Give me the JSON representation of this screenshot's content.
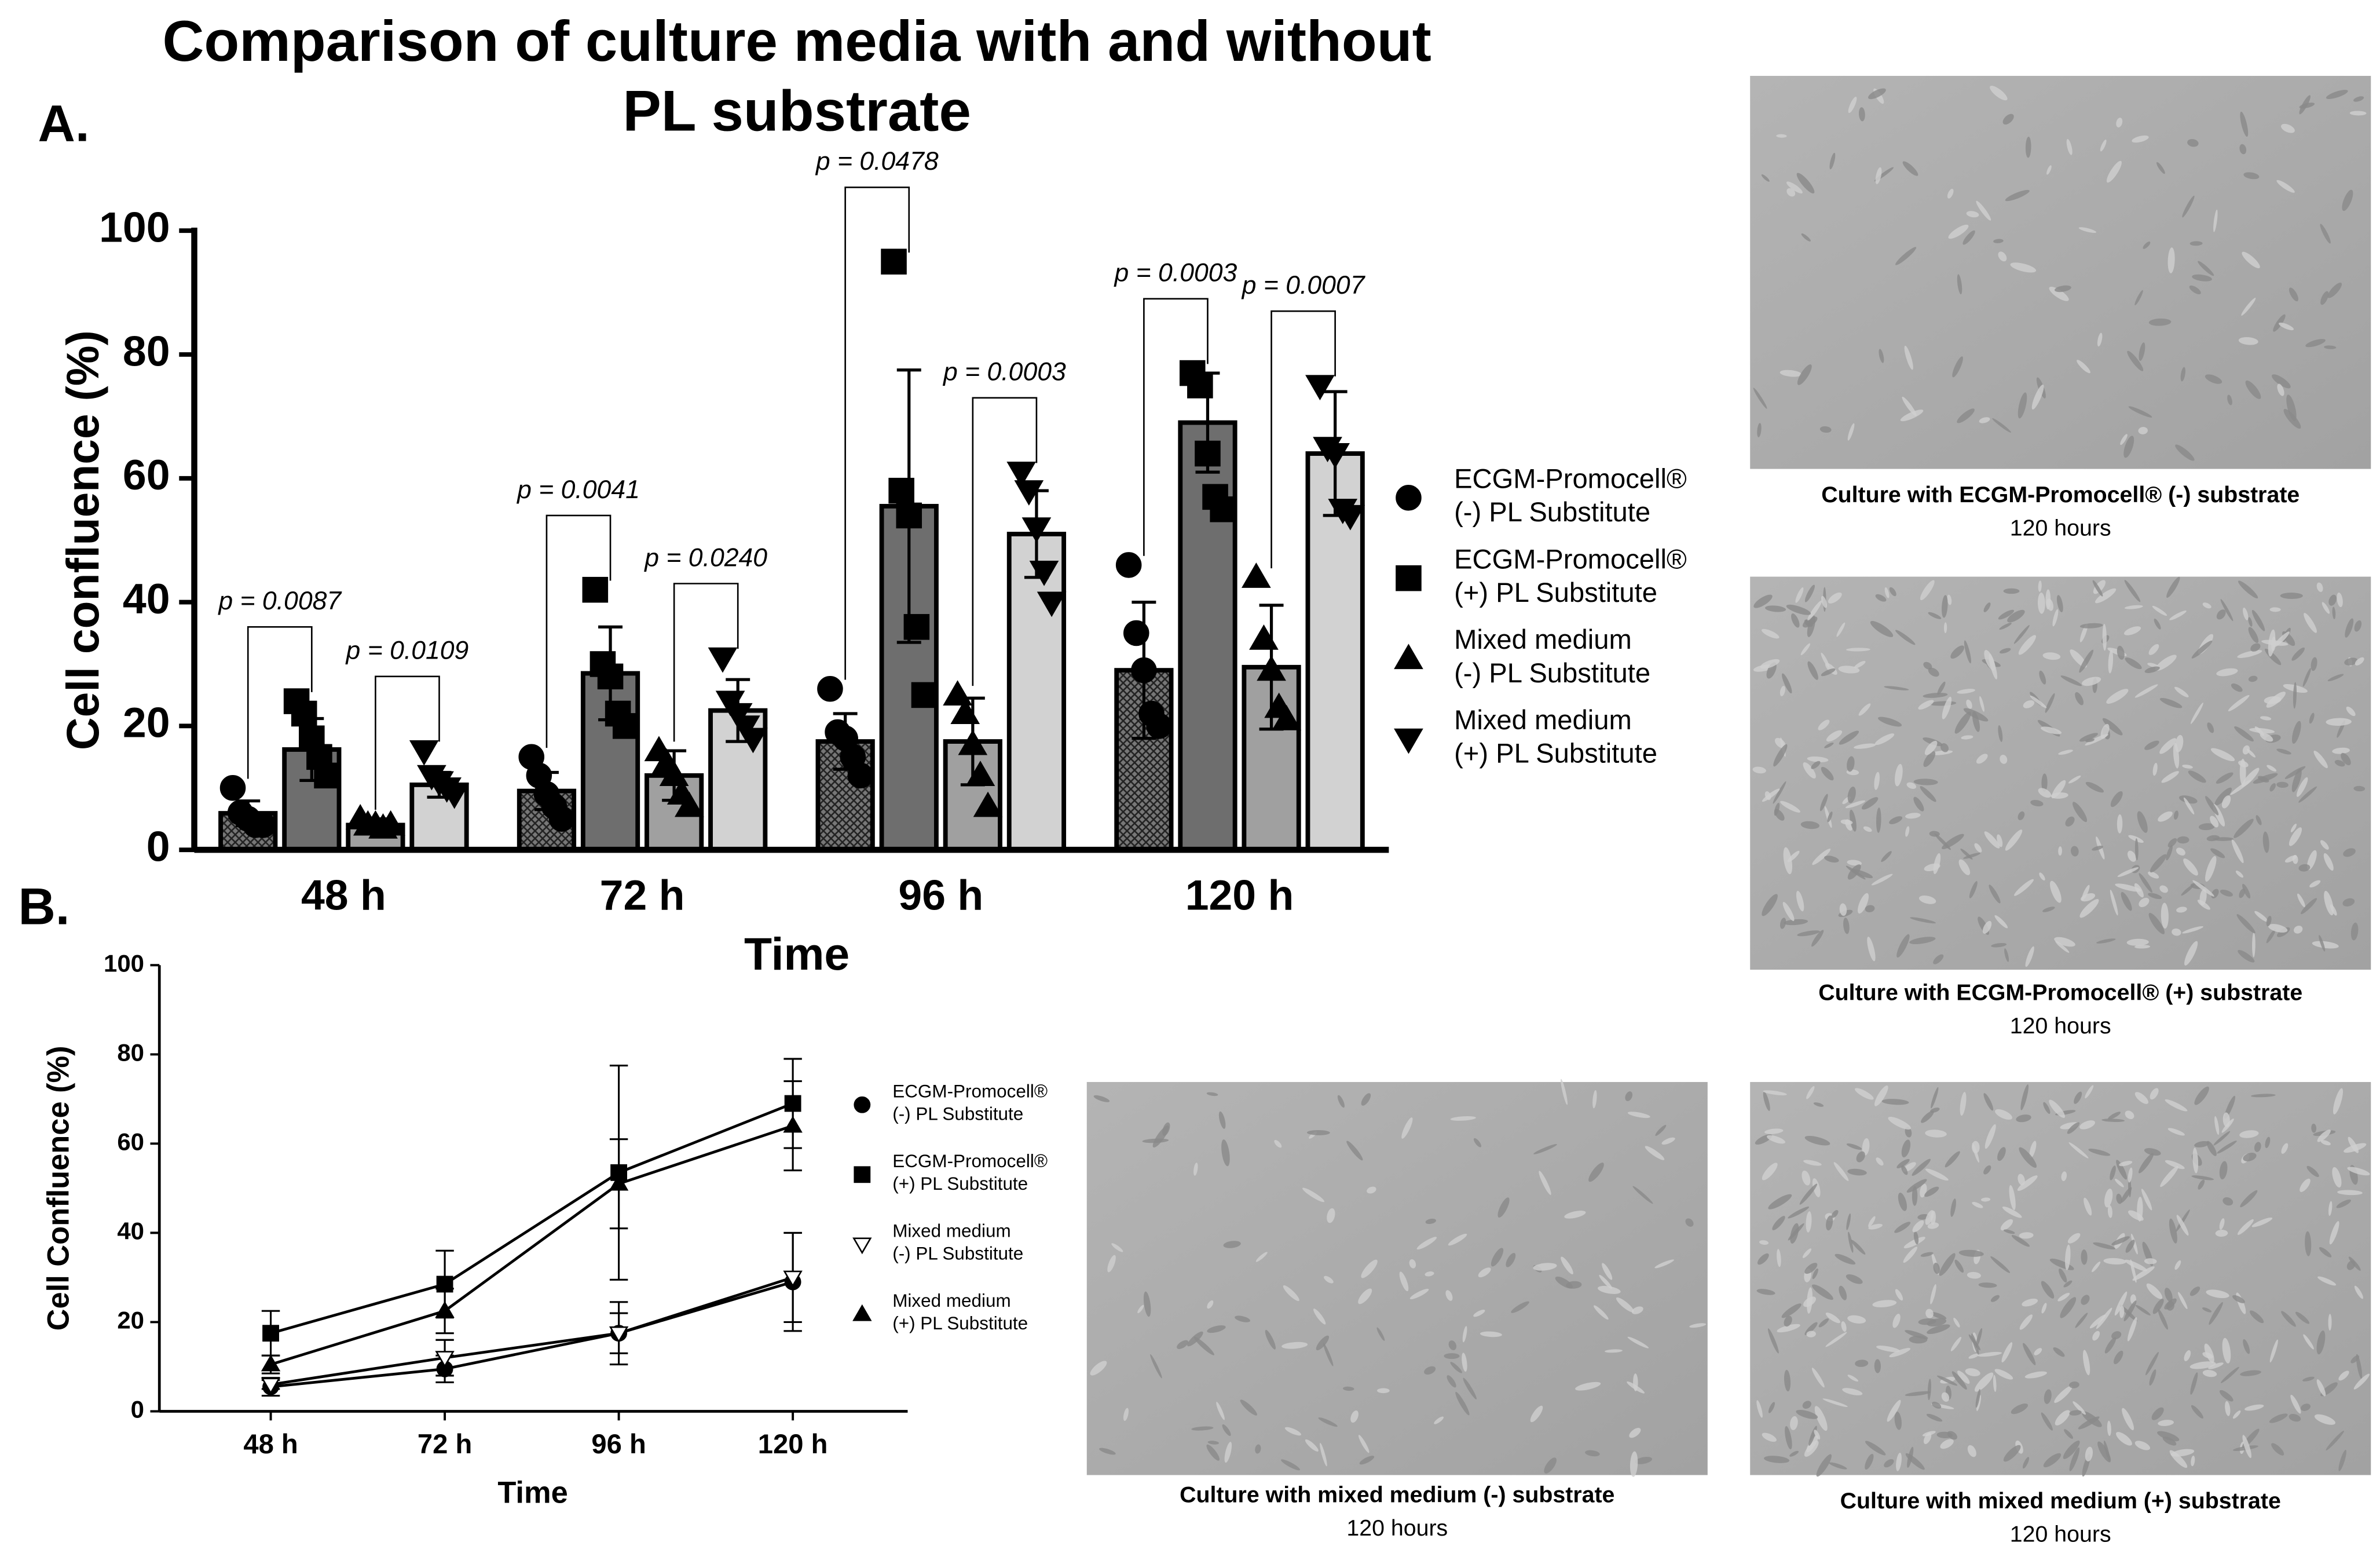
{
  "title": [
    "Comparison of culture media with and without",
    "PL substrate"
  ],
  "chart_data": [
    {
      "type": "bar",
      "panel_label": "A.",
      "x_label": "Time",
      "y_label": "Cell confluence (%)",
      "categories": [
        "48 h",
        "72 h",
        "96 h",
        "120 h"
      ],
      "ylim": [
        0,
        100
      ],
      "yticks": [
        0,
        20,
        40,
        60,
        80,
        100
      ],
      "series": [
        {
          "name": "ECGM-Promocell® (-) PL Substitute",
          "color": "#555555",
          "hatch": true,
          "marker": "circle",
          "values": [
            5.9,
            9.5,
            17.5,
            29
          ],
          "errors": [
            2,
            3,
            4.5,
            11
          ],
          "points": [
            [
              10,
              6,
              5,
              4,
              4
            ],
            [
              15,
              12,
              9,
              7,
              5
            ],
            [
              26,
              19,
              18,
              15,
              12
            ],
            [
              46,
              35,
              29,
              22,
              20
            ]
          ]
        },
        {
          "name": "ECGM-Promocell® (+) PL Substitute",
          "color": "#6e6e6e",
          "marker": "square",
          "values": [
            16.2,
            28.5,
            55.5,
            69
          ],
          "errors": [
            5,
            7.5,
            22,
            8
          ],
          "points": [
            [
              24,
              22,
              18,
              15,
              12
            ],
            [
              42,
              30,
              28,
              22,
              20
            ],
            [
              95,
              58,
              54,
              36,
              25
            ],
            [
              77,
              75,
              64,
              57,
              55
            ]
          ]
        },
        {
          "name": "Mixed medium (-) PL Substitute",
          "color": "#a0a0a0",
          "marker": "triangle-up",
          "values": [
            4,
            12,
            17.5,
            29.5
          ],
          "errors": [
            1,
            4,
            7,
            10
          ],
          "points": [
            [
              5,
              4,
              4,
              3.5,
              4
            ],
            [
              16,
              14,
              12,
              9,
              7
            ],
            [
              25,
              22,
              17,
              12,
              7
            ],
            [
              44,
              34,
              29,
              23,
              21
            ]
          ]
        },
        {
          "name": "Mixed medium (+) PL Substitute",
          "color": "#d2d2d2",
          "marker": "triangle-down",
          "values": [
            10.5,
            22.5,
            51,
            64
          ],
          "errors": [
            2,
            5,
            7,
            10
          ],
          "points": [
            [
              16,
              12,
              11,
              10,
              9
            ],
            [
              31,
              24,
              22,
              20,
              18
            ],
            [
              61,
              58,
              52,
              45,
              40
            ],
            [
              75,
              65,
              64,
              55,
              54
            ]
          ]
        }
      ],
      "annotations": [
        {
          "label": "p = 0.0087",
          "category": 0,
          "from": 0,
          "to": 1
        },
        {
          "label": "p = 0.0109",
          "category": 0,
          "from": 2,
          "to": 3
        },
        {
          "label": "p = 0.0041",
          "category": 1,
          "from": 0,
          "to": 1
        },
        {
          "label": "p = 0.0240",
          "category": 1,
          "from": 2,
          "to": 3
        },
        {
          "label": "p = 0.0478",
          "category": 2,
          "from": 0,
          "to": 1
        },
        {
          "label": "p = 0.0003",
          "category": 2,
          "from": 2,
          "to": 3
        },
        {
          "label": "p = 0.0003",
          "category": 3,
          "from": 0,
          "to": 1
        },
        {
          "label": "p = 0.0007",
          "category": 3,
          "from": 2,
          "to": 3
        }
      ]
    },
    {
      "type": "line",
      "panel_label": "B.",
      "x_label": "Time",
      "y_label": "Cell Confluence (%)",
      "categories": [
        "48 h",
        "72 h",
        "96 h",
        "120 h"
      ],
      "ylim": [
        0,
        100
      ],
      "yticks": [
        0,
        20,
        40,
        60,
        80,
        100
      ],
      "series": [
        {
          "name": "ECGM-Promocell® (-) PL Substitute",
          "color": "#000000",
          "marker": "circle",
          "filled": true,
          "values": [
            5.5,
            9.5,
            17.5,
            29
          ],
          "errors": [
            2,
            3,
            4.5,
            11
          ]
        },
        {
          "name": "ECGM-Promocell® (+) PL Substitute",
          "color": "#000000",
          "marker": "square",
          "filled": true,
          "values": [
            17.5,
            28.5,
            53.5,
            69
          ],
          "errors": [
            5,
            7.5,
            24,
            10
          ]
        },
        {
          "name": "Mixed medium (-) PL Substitute",
          "color": "#000000",
          "marker": "triangle-down",
          "filled": false,
          "values": [
            6,
            12,
            17.5,
            30
          ],
          "errors": [
            1,
            4,
            7,
            10
          ]
        },
        {
          "name": "Mixed medium (+) PL Substitute",
          "color": "#000000",
          "marker": "triangle-up",
          "filled": true,
          "values": [
            10.5,
            22.5,
            51,
            64
          ],
          "errors": [
            2,
            5,
            10,
            10
          ]
        }
      ]
    }
  ],
  "images": [
    {
      "caption": "Culture with ECGM-Promocell® (-) substrate",
      "subcaption": "120 hours"
    },
    {
      "caption": "Culture with ECGM-Promocell® (+) substrate",
      "subcaption": "120 hours"
    },
    {
      "caption": "Culture with mixed medium (-) substrate",
      "subcaption": "120 hours"
    },
    {
      "caption": "Culture with mixed medium (+) substrate",
      "subcaption": "120 hours"
    }
  ]
}
